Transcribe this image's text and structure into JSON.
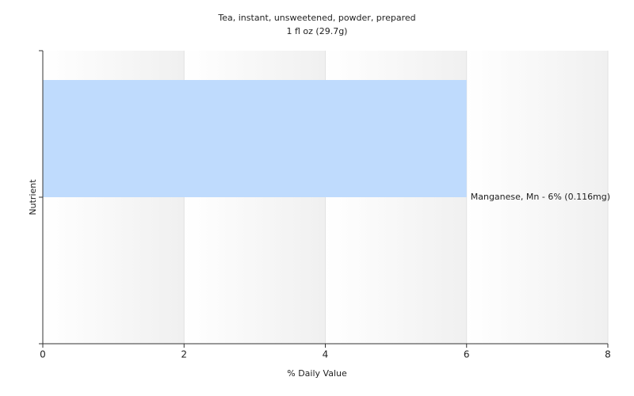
{
  "chart_data": {
    "type": "hbar",
    "title": "Tea, instant, unsweetened, powder, prepared",
    "subtitle": "1 fl oz (29.7g)",
    "x_label": "% Daily Value",
    "y_label": "Nutrient",
    "categories": [
      null
    ],
    "values": [
      6
    ],
    "value_labels": [
      "Manganese, Mn - 6% (0.116mg)"
    ],
    "color": "#bfdbfd",
    "xlim": [
      0,
      8
    ],
    "xticks": [
      0,
      2,
      4,
      6,
      8
    ],
    "grid": true
  }
}
